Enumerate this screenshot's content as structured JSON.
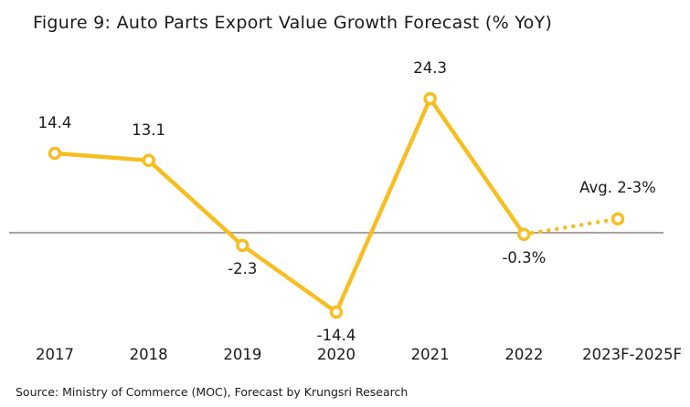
{
  "title": "Figure 9: Auto Parts Export Value Growth Forecast (% YoY)",
  "source": "Source: Ministry of Commerce (MOC), Forecast by Krungsri Research",
  "colors": {
    "line": "#F7BE22",
    "marker_fill": "#FFFFFF",
    "baseline": "#7A6868",
    "text": "#1A1A1A"
  },
  "chart_data": {
    "type": "line",
    "title": "Figure 9: Auto Parts Export Value Growth Forecast (% YoY)",
    "xlabel": "",
    "ylabel": "",
    "categories": [
      "2017",
      "2018",
      "2019",
      "2020",
      "2021",
      "2022",
      "2023F-2025F"
    ],
    "series": [
      {
        "values": [
          14.4,
          13.1,
          -2.3,
          -14.4,
          24.3,
          -0.3,
          2.5
        ],
        "data_labels": [
          "14.4",
          "13.1",
          "-2.3",
          "-14.4",
          "24.3",
          "-0.3%",
          "Avg. 2-3%"
        ],
        "forecast_from_index": 5
      }
    ],
    "ylim": [
      -20,
      30
    ],
    "grid": false,
    "legend": "none",
    "baseline": 0
  }
}
